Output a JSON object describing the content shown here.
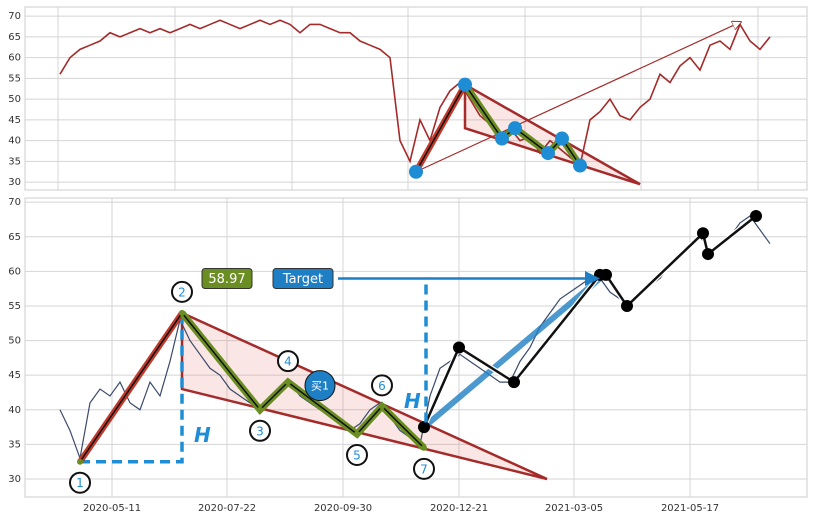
{
  "chart_data": [
    {
      "type": "line",
      "color": "#a52a2a",
      "grid": true,
      "xlim": [
        -3.5,
        74.7
      ],
      "ylim": [
        28.1,
        72.2
      ],
      "yticks": [
        30,
        35,
        40,
        45,
        50,
        55,
        60,
        65,
        70
      ],
      "xgrid": [
        -0.2,
        11.5,
        23.2,
        34.8,
        46.5,
        58.1,
        69.8
      ],
      "values": [
        56,
        60,
        62,
        63,
        64,
        66,
        65,
        66,
        67,
        66,
        67,
        66,
        67,
        68,
        67,
        68,
        69,
        68,
        67,
        68,
        69,
        68,
        69,
        68,
        66,
        68,
        68,
        67,
        66,
        66,
        64,
        63,
        62,
        60,
        40,
        35,
        45,
        40,
        48,
        52,
        54,
        50,
        46,
        44,
        41,
        43,
        40,
        41,
        37,
        40,
        38,
        36,
        34,
        45,
        47,
        50,
        46,
        45,
        48,
        50,
        56,
        54,
        58,
        60,
        57,
        63,
        64,
        62,
        68,
        64,
        62,
        65
      ],
      "pattern": {
        "x": [
          35.6,
          40.5,
          44.2,
          45.5,
          48.8,
          50.2,
          52
        ],
        "values": [
          32.5,
          53.5,
          40.5,
          43,
          37,
          40.5,
          34
        ]
      },
      "triangle": {
        "x": [
          40.5,
          58,
          40.5
        ],
        "values": [
          53.5,
          29.5,
          43
        ]
      },
      "target_arrow": {
        "x": [
          35.6,
          68
        ],
        "values": [
          32.5,
          68.5
        ]
      }
    },
    {
      "type": "line",
      "color": "#3a4a6b",
      "grid": true,
      "xlim": [
        -3.5,
        74.7
      ],
      "ylim": [
        27.4,
        70.6
      ],
      "yticks": [
        30,
        35,
        40,
        45,
        50,
        55,
        60,
        65,
        70
      ],
      "xticks": [
        {
          "value": 5.2,
          "label": "2020-05-11"
        },
        {
          "value": 16.7,
          "label": "2020-07-22"
        },
        {
          "value": 28.3,
          "label": "2020-09-30"
        },
        {
          "value": 39.9,
          "label": "2020-12-21"
        },
        {
          "value": 51.4,
          "label": "2021-03-05"
        },
        {
          "value": 63,
          "label": "2021-05-17"
        }
      ],
      "values": [
        40,
        37,
        33,
        41,
        43,
        42,
        44,
        41,
        40,
        44,
        42,
        47,
        53,
        50,
        48,
        46,
        45,
        43,
        42,
        41,
        40,
        42,
        43,
        44,
        42,
        41,
        40,
        39,
        38,
        37,
        38,
        40,
        41,
        39,
        37,
        36,
        35,
        42,
        46,
        47,
        48,
        47,
        46,
        45,
        44,
        44,
        47,
        49,
        52,
        54,
        56,
        57,
        58,
        59,
        59,
        57,
        56,
        55,
        57,
        58,
        59,
        61,
        62,
        64,
        65,
        63,
        64,
        65,
        67,
        68,
        66,
        64
      ],
      "pattern": {
        "x": [
          2,
          12.2,
          20,
          22.8,
          29.7,
          32.2,
          36.4
        ],
        "values": [
          32.5,
          54,
          40,
          44,
          36.5,
          40.5,
          34.5
        ],
        "labels": [
          "1",
          "2",
          "3",
          "4",
          "5",
          "6",
          "7"
        ]
      },
      "triangle": {
        "x": [
          12.2,
          48.7,
          12.2
        ],
        "values": [
          54,
          30,
          43
        ]
      },
      "breakout": {
        "x": [
          36.4,
          39.9,
          45.4,
          54,
          54.6,
          56.7,
          64.3,
          64.8,
          69.6
        ],
        "values": [
          37.5,
          49,
          44,
          59.5,
          59.5,
          55,
          65.5,
          62.5,
          68
        ]
      },
      "target_arrow": {
        "x": [
          36.4,
          54
        ],
        "values": [
          37.5,
          59
        ]
      },
      "height": {
        "x": [
          2,
          12.2
        ],
        "values": [
          32.5,
          54
        ],
        "labels": [
          "H",
          "H"
        ]
      },
      "target": {
        "label": "Target",
        "value_label": "58.97",
        "value": 58.97
      },
      "buy": {
        "label": "买1",
        "x": 26,
        "value": 43.5
      }
    }
  ]
}
